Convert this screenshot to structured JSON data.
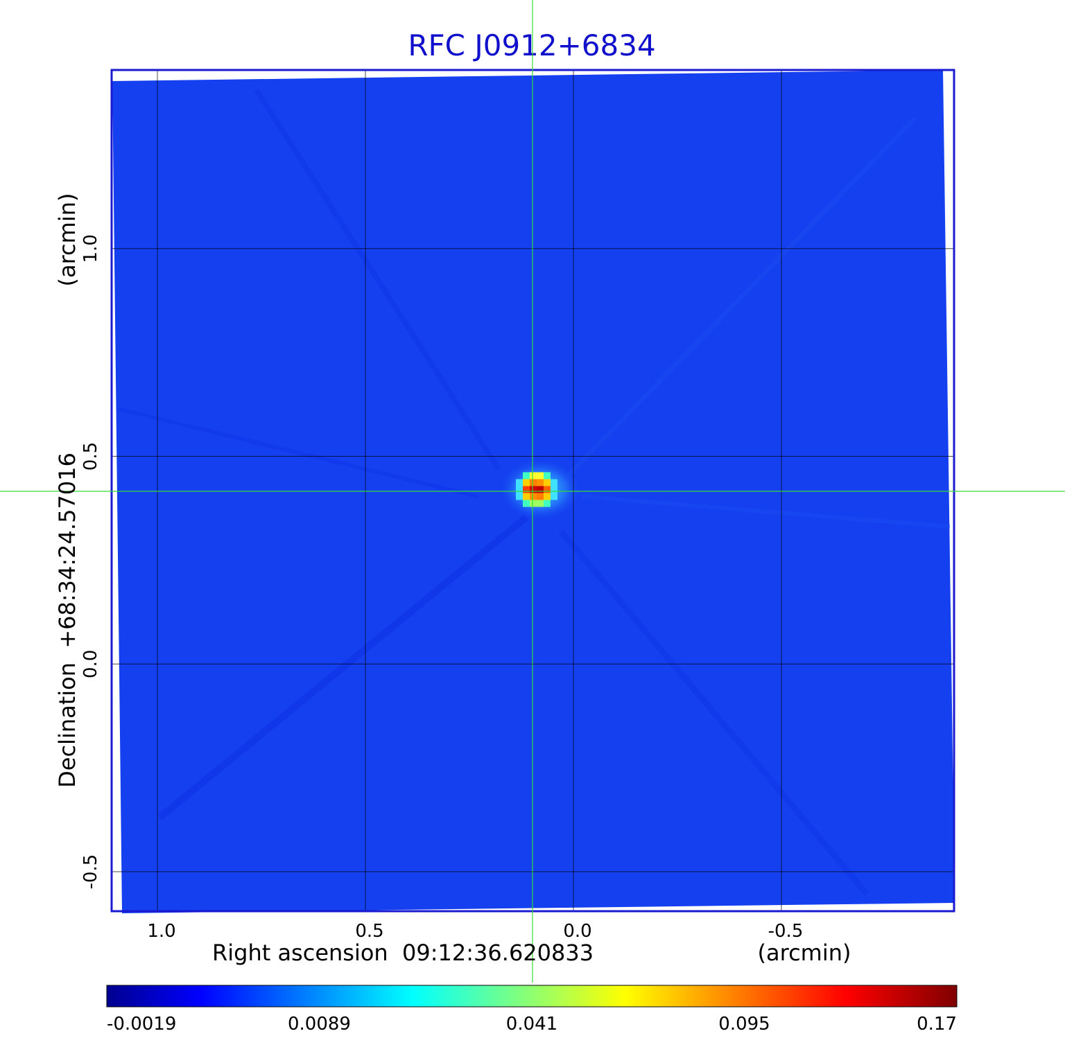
{
  "chart_data": {
    "type": "heatmap",
    "title": "RFC J0912+6834",
    "xlabel": "Right ascension  09:12:36.620833",
    "xunit": "(arcmin)",
    "ylabel": "Declination  +68:34:24.57016",
    "yunit": "(arcmin)",
    "x_ticks": [
      "1.0",
      "0.5",
      "0.0",
      "-0.5"
    ],
    "x_tick_values": [
      1.0,
      0.5,
      0.0,
      -0.5
    ],
    "y_ticks": [
      "1.0",
      "0.5",
      "0.0",
      "-0.5"
    ],
    "y_tick_values": [
      1.0,
      0.5,
      0.0,
      -0.5
    ],
    "xlim": [
      1.11,
      -0.915
    ],
    "ylim": [
      -0.595,
      1.43
    ],
    "grid": true,
    "crosshair": {
      "x": 0.093,
      "y": 0.415
    },
    "source_peak": {
      "x": 0.08,
      "y": 0.42,
      "value": 0.17
    },
    "colorbar": {
      "colormap": "jet",
      "tick_labels": [
        "-0.0019",
        "0.0089",
        "0.041",
        "0.095",
        "0.17"
      ],
      "values": [
        -0.0019,
        0.0089,
        0.041,
        0.095,
        0.17
      ]
    },
    "colors": {
      "title": "#1010cc",
      "frame": "#1a1ad0",
      "background_field": "#1440f0",
      "crosshair": "#33dd33",
      "grid": "#000000"
    }
  }
}
